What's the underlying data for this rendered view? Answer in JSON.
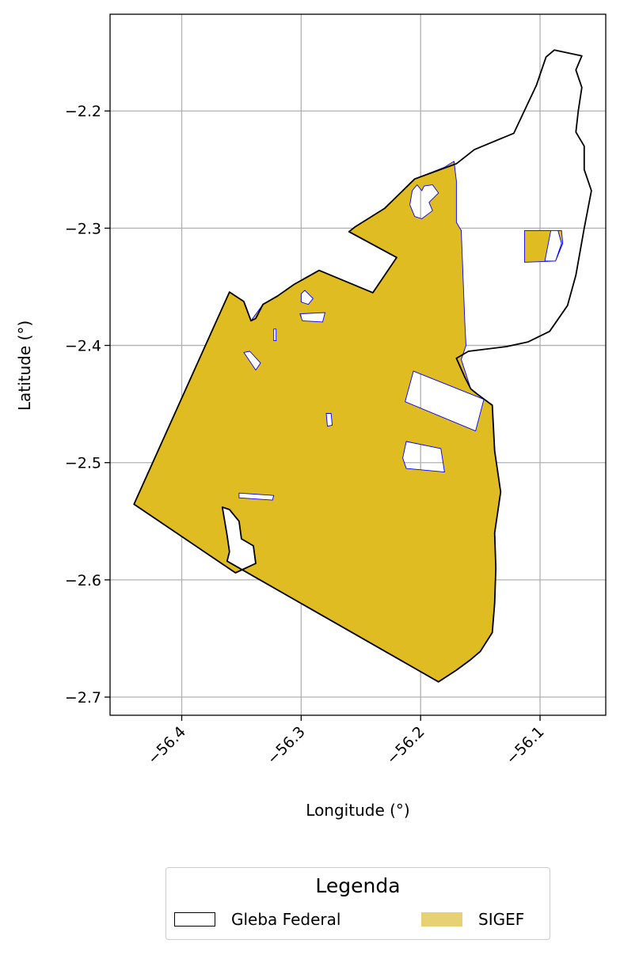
{
  "chart_data": {
    "type": "map",
    "xlabel": "Longitude (°)",
    "ylabel": "Latitude (°)",
    "xlim": [
      -56.46,
      -56.045
    ],
    "ylim": [
      -2.7155,
      -2.1175
    ],
    "xticks": [
      -56.4,
      -56.3,
      -56.2,
      -56.1
    ],
    "xtick_labels": [
      "−56.4",
      "−56.3",
      "−56.2",
      "−56.1"
    ],
    "yticks": [
      -2.2,
      -2.3,
      -2.4,
      -2.5,
      -2.6,
      -2.7
    ],
    "ytick_labels": [
      "−2.2",
      "−2.3",
      "−2.4",
      "−2.5",
      "−2.6",
      "−2.7"
    ],
    "grid": true,
    "legend": {
      "title": "Legenda",
      "placement": "below",
      "entries": [
        {
          "label": "Gleba Federal",
          "style": "outline",
          "color": "#000000"
        },
        {
          "label": "SIGEF",
          "style": "fill",
          "color": "#e6d274"
        }
      ]
    },
    "layers": [
      {
        "name": "Gleba Federal",
        "style": "outline",
        "edge_color": "#000000",
        "coordinates": [
          [
            -56.44,
            -2.5355
          ],
          [
            -56.36,
            -2.3545
          ],
          [
            -56.348,
            -2.3625
          ],
          [
            -56.342,
            -2.379
          ],
          [
            -56.338,
            -2.377
          ],
          [
            -56.332,
            -2.365
          ],
          [
            -56.32,
            -2.358
          ],
          [
            -56.306,
            -2.348
          ],
          [
            -56.285,
            -2.336
          ],
          [
            -56.24,
            -2.355
          ],
          [
            -56.22,
            -2.325
          ],
          [
            -56.26,
            -2.303
          ],
          [
            -56.255,
            -2.299
          ],
          [
            -56.23,
            -2.283
          ],
          [
            -56.205,
            -2.258
          ],
          [
            -56.17,
            -2.245
          ],
          [
            -56.155,
            -2.233
          ],
          [
            -56.122,
            -2.219
          ],
          [
            -56.103,
            -2.178
          ],
          [
            -56.095,
            -2.154
          ],
          [
            -56.088,
            -2.148
          ],
          [
            -56.065,
            -2.153
          ],
          [
            -56.07,
            -2.165
          ],
          [
            -56.065,
            -2.18
          ],
          [
            -56.068,
            -2.2
          ],
          [
            -56.07,
            -2.218
          ],
          [
            -56.063,
            -2.23
          ],
          [
            -56.063,
            -2.25
          ],
          [
            -56.057,
            -2.268
          ],
          [
            -56.063,
            -2.3
          ],
          [
            -56.07,
            -2.34
          ],
          [
            -56.077,
            -2.366
          ],
          [
            -56.092,
            -2.388
          ],
          [
            -56.11,
            -2.397
          ],
          [
            -56.128,
            -2.401
          ],
          [
            -56.16,
            -2.405
          ],
          [
            -56.17,
            -2.411
          ],
          [
            -56.163,
            -2.427
          ],
          [
            -56.158,
            -2.437
          ],
          [
            -56.152,
            -2.442
          ],
          [
            -56.14,
            -2.451
          ],
          [
            -56.138,
            -2.49
          ],
          [
            -56.133,
            -2.525
          ],
          [
            -56.138,
            -2.56
          ],
          [
            -56.137,
            -2.59
          ],
          [
            -56.138,
            -2.62
          ],
          [
            -56.14,
            -2.645
          ],
          [
            -56.15,
            -2.661
          ],
          [
            -56.158,
            -2.668
          ],
          [
            -56.17,
            -2.677
          ],
          [
            -56.185,
            -2.687
          ],
          [
            -56.362,
            -2.584
          ],
          [
            -56.36,
            -2.576
          ],
          [
            -56.362,
            -2.562
          ],
          [
            -56.366,
            -2.538
          ],
          [
            -56.36,
            -2.54
          ],
          [
            -56.352,
            -2.55
          ],
          [
            -56.35,
            -2.565
          ],
          [
            -56.34,
            -2.571
          ],
          [
            -56.338,
            -2.586
          ],
          [
            -56.355,
            -2.594
          ]
        ]
      },
      {
        "name": "SIGEF",
        "style": "fill",
        "fill_color": "#dfbc21",
        "edge_color": "#0000ff",
        "coordinates": [
          [
            -56.44,
            -2.5355
          ],
          [
            -56.36,
            -2.3545
          ],
          [
            -56.348,
            -2.3625
          ],
          [
            -56.342,
            -2.379
          ],
          [
            -56.332,
            -2.365
          ],
          [
            -56.32,
            -2.358
          ],
          [
            -56.306,
            -2.348
          ],
          [
            -56.285,
            -2.336
          ],
          [
            -56.24,
            -2.355
          ],
          [
            -56.22,
            -2.325
          ],
          [
            -56.26,
            -2.303
          ],
          [
            -56.255,
            -2.299
          ],
          [
            -56.23,
            -2.283
          ],
          [
            -56.205,
            -2.258
          ],
          [
            -56.18,
            -2.248
          ],
          [
            -56.172,
            -2.243
          ],
          [
            -56.17,
            -2.26
          ],
          [
            -56.17,
            -2.295
          ],
          [
            -56.166,
            -2.302
          ],
          [
            -56.163,
            -2.38
          ],
          [
            -56.162,
            -2.4
          ],
          [
            -56.166,
            -2.412
          ],
          [
            -56.158,
            -2.437
          ],
          [
            -56.14,
            -2.451
          ],
          [
            -56.138,
            -2.49
          ],
          [
            -56.133,
            -2.525
          ],
          [
            -56.138,
            -2.56
          ],
          [
            -56.137,
            -2.59
          ],
          [
            -56.138,
            -2.62
          ],
          [
            -56.14,
            -2.645
          ],
          [
            -56.15,
            -2.661
          ],
          [
            -56.158,
            -2.668
          ],
          [
            -56.17,
            -2.677
          ],
          [
            -56.185,
            -2.687
          ],
          [
            -56.362,
            -2.584
          ],
          [
            -56.36,
            -2.576
          ],
          [
            -56.362,
            -2.562
          ],
          [
            -56.366,
            -2.538
          ],
          [
            -56.36,
            -2.54
          ],
          [
            -56.352,
            -2.55
          ],
          [
            -56.35,
            -2.565
          ],
          [
            -56.34,
            -2.571
          ],
          [
            -56.338,
            -2.586
          ],
          [
            -56.355,
            -2.594
          ]
        ],
        "holes": [
          [
            [
              -56.207,
              -2.268
            ],
            [
              -56.203,
              -2.263
            ],
            [
              -56.199,
              -2.268
            ],
            [
              -56.197,
              -2.264
            ],
            [
              -56.19,
              -2.263
            ],
            [
              -56.185,
              -2.27
            ],
            [
              -56.193,
              -2.278
            ],
            [
              -56.19,
              -2.285
            ],
            [
              -56.199,
              -2.292
            ],
            [
              -56.205,
              -2.29
            ],
            [
              -56.209,
              -2.28
            ]
          ],
          [
            [
              -56.3,
              -2.356
            ],
            [
              -56.297,
              -2.353
            ],
            [
              -56.29,
              -2.36
            ],
            [
              -56.294,
              -2.365
            ],
            [
              -56.3,
              -2.363
            ]
          ],
          [
            [
              -56.301,
              -2.373
            ],
            [
              -56.28,
              -2.372
            ],
            [
              -56.282,
              -2.38
            ],
            [
              -56.299,
              -2.379
            ]
          ],
          [
            [
              -56.323,
              -2.386
            ],
            [
              -56.321,
              -2.386
            ],
            [
              -56.321,
              -2.396
            ],
            [
              -56.323,
              -2.396
            ]
          ],
          [
            [
              -56.348,
              -2.406
            ],
            [
              -56.343,
              -2.405
            ],
            [
              -56.334,
              -2.415
            ],
            [
              -56.338,
              -2.421
            ]
          ],
          [
            [
              -56.206,
              -2.422
            ],
            [
              -56.213,
              -2.448
            ],
            [
              -56.154,
              -2.473
            ],
            [
              -56.147,
              -2.446
            ]
          ],
          [
            [
              -56.279,
              -2.458
            ],
            [
              -56.275,
              -2.458
            ],
            [
              -56.274,
              -2.468
            ],
            [
              -56.278,
              -2.469
            ]
          ],
          [
            [
              -56.212,
              -2.482
            ],
            [
              -56.183,
              -2.488
            ],
            [
              -56.18,
              -2.508
            ],
            [
              -56.212,
              -2.505
            ],
            [
              -56.215,
              -2.496
            ]
          ],
          [
            [
              -56.352,
              -2.526
            ],
            [
              -56.323,
              -2.528
            ],
            [
              -56.324,
              -2.532
            ],
            [
              -56.352,
              -2.53
            ]
          ]
        ]
      },
      {
        "name": "SIGEF",
        "style": "fill",
        "fill_color": "#dfbc21",
        "edge_color": "#0000ff",
        "coordinates": [
          [
            -56.113,
            -2.302
          ],
          [
            -56.082,
            -2.302
          ],
          [
            -56.081,
            -2.313
          ],
          [
            -56.087,
            -2.328
          ],
          [
            -56.113,
            -2.329
          ]
        ],
        "holes": [
          [
            [
              -56.091,
              -2.302
            ],
            [
              -56.085,
              -2.302
            ],
            [
              -56.082,
              -2.313
            ],
            [
              -56.087,
              -2.328
            ],
            [
              -56.096,
              -2.328
            ]
          ]
        ]
      }
    ]
  }
}
